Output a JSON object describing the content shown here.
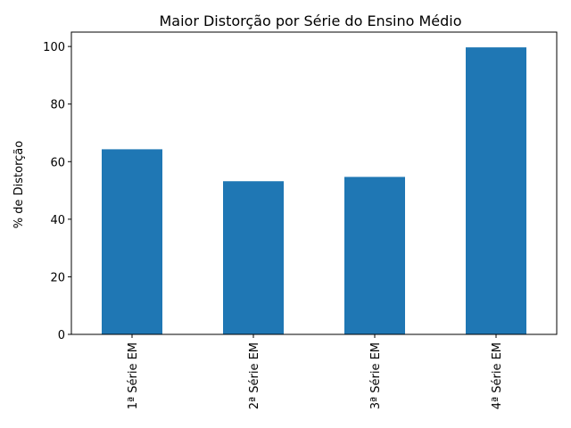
{
  "chart_data": {
    "type": "bar",
    "title": "Maior Distorção por Série do Ensino Médio",
    "xlabel": "",
    "ylabel": "% de Distorção",
    "categories": [
      "1ª Série EM",
      "2ª Série EM",
      "3ª Série EM",
      "4ª Série EM"
    ],
    "values": [
      64.3,
      53.2,
      54.7,
      99.7
    ],
    "ylim": [
      0,
      105
    ],
    "yticks": [
      0,
      20,
      40,
      60,
      80,
      100
    ],
    "bar_color": "#1f77b4",
    "grid": false,
    "legend": "none"
  }
}
